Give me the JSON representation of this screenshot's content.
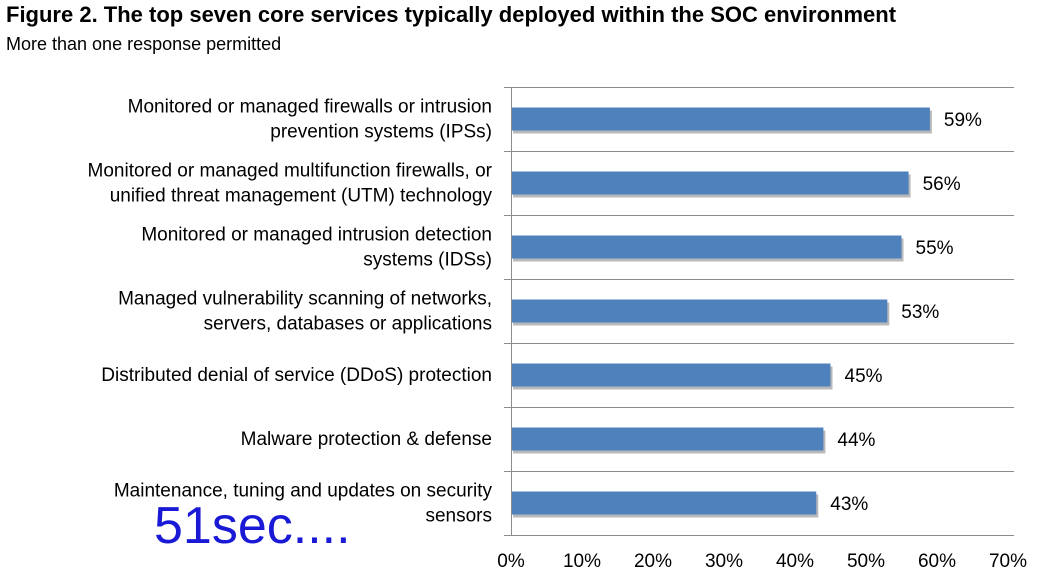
{
  "chart_data": {
    "type": "bar",
    "orientation": "horizontal",
    "title": "Figure 2. The top seven core services typically deployed within the SOC environment",
    "subtitle": "More than one response permitted",
    "categories": [
      [
        "Monitored or managed firewalls or intrusion",
        "prevention systems (IPSs)"
      ],
      [
        "Monitored or managed multifunction firewalls, or",
        "unified threat management (UTM) technology"
      ],
      [
        "Monitored or managed intrusion detection",
        "systems (IDSs)"
      ],
      [
        "Managed vulnerability scanning of networks,",
        "servers, databases or applications"
      ],
      [
        "Distributed denial of service (DDoS) protection"
      ],
      [
        "Malware protection & defense"
      ],
      [
        "Maintenance, tuning and updates on security",
        "sensors"
      ]
    ],
    "values": [
      59,
      56,
      55,
      53,
      45,
      44,
      43
    ],
    "value_labels": [
      "59%",
      "56%",
      "55%",
      "53%",
      "45%",
      "44%",
      "43%"
    ],
    "xlim": [
      0,
      70
    ],
    "xticks": [
      0,
      10,
      20,
      30,
      40,
      50,
      60,
      70
    ],
    "xtick_labels": [
      "0%",
      "10%",
      "20%",
      "30%",
      "40%",
      "50%",
      "60%",
      "70%"
    ],
    "bar_color": "#4f81bd",
    "grid": "horizontal separators between categories",
    "legend": "none"
  },
  "watermark": "51sec...."
}
